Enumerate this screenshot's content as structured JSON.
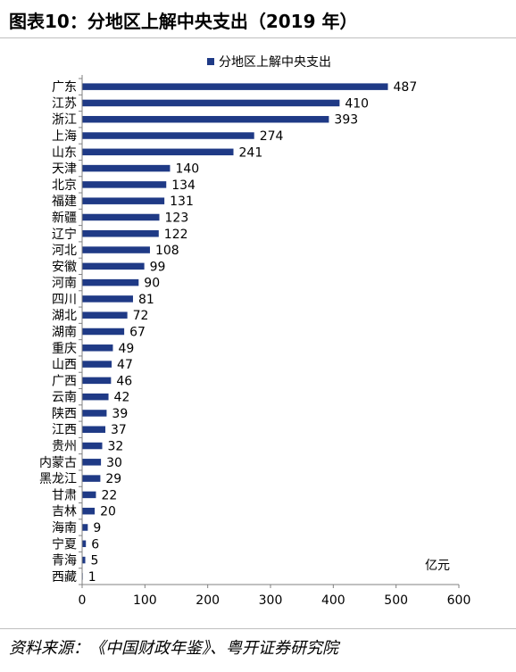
{
  "figure": {
    "title": "图表10：分地区上解中央支出（2019 年）",
    "source": "资料来源：《中国财政年鉴》、粤开证券研究院"
  },
  "colors": {
    "bar": "#1F3A86",
    "axis": "#808080"
  },
  "chart_data": {
    "type": "bar",
    "orientation": "horizontal",
    "legend": "分地区上解中央支出",
    "legend_position": "top",
    "unit": "亿元",
    "xlim": [
      0,
      600
    ],
    "xticks": [
      0,
      100,
      200,
      300,
      400,
      500,
      600
    ],
    "grid": false,
    "categories": [
      "广东",
      "江苏",
      "浙江",
      "上海",
      "山东",
      "天津",
      "北京",
      "福建",
      "新疆",
      "辽宁",
      "河北",
      "安徽",
      "河南",
      "四川",
      "湖北",
      "湖南",
      "重庆",
      "山西",
      "广西",
      "云南",
      "陕西",
      "江西",
      "贵州",
      "内蒙古",
      "黑龙江",
      "甘肃",
      "吉林",
      "海南",
      "宁夏",
      "青海",
      "西藏"
    ],
    "values": [
      487,
      410,
      393,
      274,
      241,
      140,
      134,
      131,
      123,
      122,
      108,
      99,
      90,
      81,
      72,
      67,
      49,
      47,
      46,
      42,
      39,
      37,
      32,
      30,
      29,
      22,
      20,
      9,
      6,
      5,
      1
    ]
  }
}
